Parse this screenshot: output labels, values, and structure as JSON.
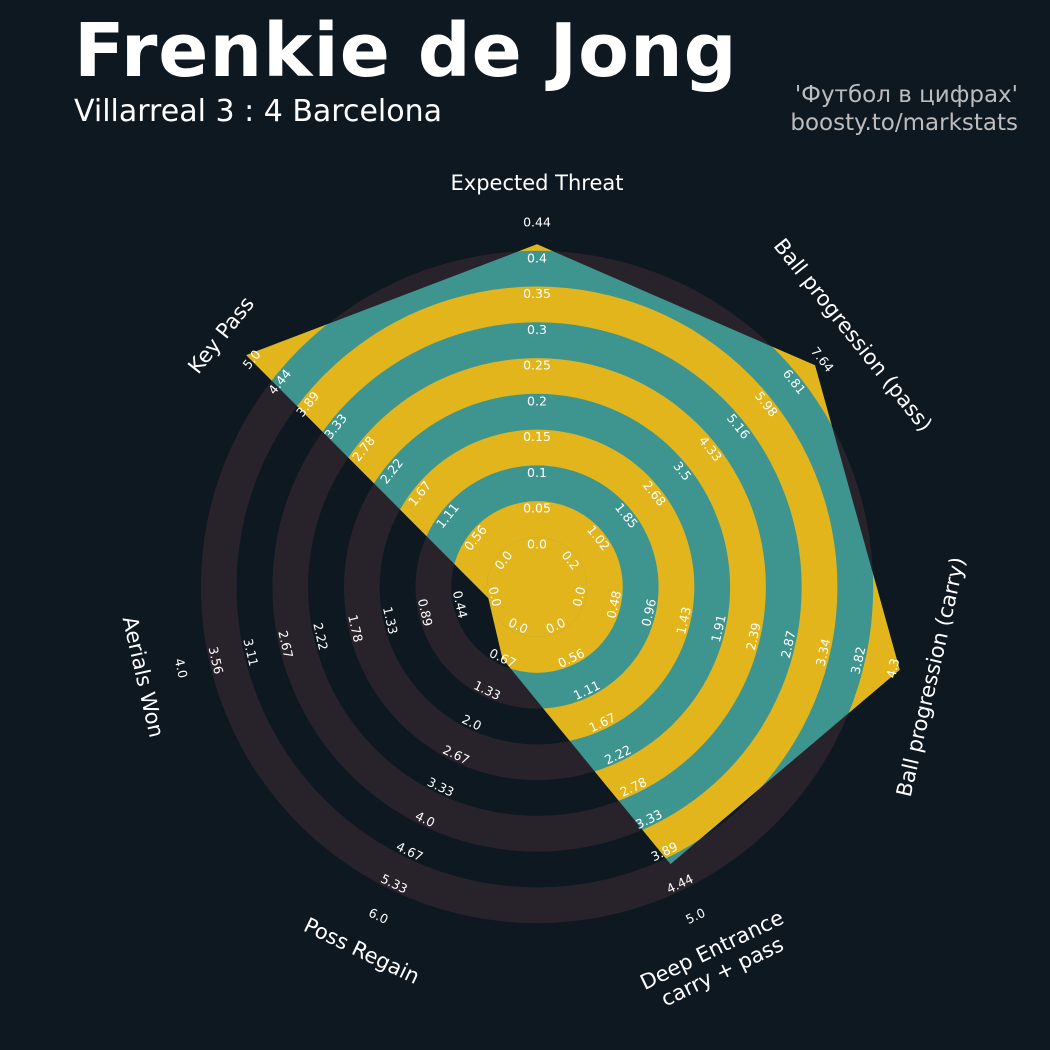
{
  "header": {
    "title": "Frenkie de Jong",
    "subtitle": "Villarreal 3 : 4 Barcelona",
    "credit_line1": "'Футбол в цифрах'",
    "credit_line2": "boosty.to/markstats"
  },
  "colors": {
    "background": "#0e1821",
    "ring_dark": "#28232a",
    "ring_light": "#0e1821",
    "polygon_teal": "#3e9590",
    "polygon_gold": "#e2b51c",
    "label_text": "#ffffff"
  },
  "chart_data": {
    "type": "radar",
    "title": "Frenkie de Jong",
    "axes": [
      {
        "label": "Expected Threat",
        "max": 0.44,
        "value": 0.4,
        "ticks": [
          "0.0",
          "0.05",
          "0.1",
          "0.15",
          "0.2",
          "0.25",
          "0.3",
          "0.35",
          "0.4",
          "0.44"
        ]
      },
      {
        "label": "Ball progression (pass)",
        "max": 7.64,
        "value": 7.25,
        "ticks": [
          "0.2",
          "1.02",
          "1.85",
          "2.68",
          "3.5",
          "4.33",
          "5.16",
          "5.98",
          "6.81",
          "7.64"
        ]
      },
      {
        "label": "Ball progression (carry)",
        "max": 4.3,
        "value": 4.3,
        "ticks": [
          "0.0",
          "0.48",
          "0.96",
          "1.43",
          "1.91",
          "2.39",
          "2.87",
          "3.34",
          "3.82",
          "4.3"
        ]
      },
      {
        "label": "Deep Entrance\ncarry + pass",
        "max": 5.0,
        "value": 4.0,
        "ticks": [
          "0.0",
          "0.56",
          "1.11",
          "1.67",
          "2.22",
          "2.78",
          "3.33",
          "3.89",
          "4.44",
          "5.0"
        ]
      },
      {
        "label": "Poss Regain",
        "max": 6.0,
        "value": 0.55,
        "ticks": [
          "0.0",
          "0.67",
          "1.33",
          "2.0",
          "2.67",
          "3.33",
          "4.0",
          "4.67",
          "5.33",
          "6.0"
        ]
      },
      {
        "label": "Aerials Won",
        "max": 4.0,
        "value": 0.0,
        "ticks": [
          "0.0",
          "0.44",
          "0.89",
          "1.33",
          "1.78",
          "2.22",
          "2.67",
          "3.11",
          "3.56",
          "4.0"
        ]
      },
      {
        "label": "Key Pass",
        "max": 5.0,
        "value": 5.0,
        "ticks": [
          "0.0",
          "0.56",
          "1.11",
          "1.67",
          "2.22",
          "2.78",
          "3.33",
          "3.89",
          "4.44",
          "5.0"
        ]
      }
    ]
  }
}
